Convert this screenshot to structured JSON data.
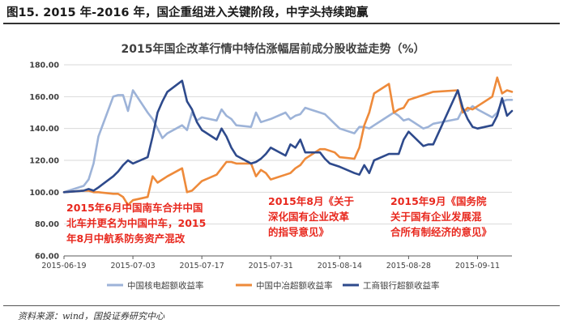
{
  "figure": {
    "title": "图15. 2015 年-2016 年，国企重组进入关键阶段，中字头持续跑赢",
    "source": "资料来源：wind，国投证券研究中心"
  },
  "colors": {
    "nuclear": "#9db3d8",
    "metallurgy": "#ee8a3a",
    "icbc": "#2e4a8c",
    "annotation": "#e8281e",
    "grid": "#d9d9d9",
    "axis": "#595959"
  },
  "chart_data": {
    "type": "line",
    "title": "2015年国企改革行情中特估涨幅居前成分股收益走势（%）",
    "xlabel": "",
    "ylabel": "",
    "ylim": [
      60,
      180
    ],
    "y_ticks": [
      "60.00",
      "80.00",
      "100.00",
      "120.00",
      "140.00",
      "160.00",
      "180.00"
    ],
    "x_range": [
      "2015-06-19",
      "2015-09-18"
    ],
    "x_ticks": [
      "2015-06-19",
      "2015-07-03",
      "2015-07-17",
      "2015-07-31",
      "2015-08-14",
      "2015-08-28",
      "2015-09-11"
    ],
    "grid": "horizontal",
    "legend_position": "bottom",
    "series": [
      {
        "name": "中国核电超额收益率",
        "color_key": "nuclear",
        "points": [
          [
            "2015-06-19",
            100
          ],
          [
            "2015-06-23",
            104
          ],
          [
            "2015-06-24",
            108
          ],
          [
            "2015-06-25",
            118
          ],
          [
            "2015-06-26",
            135
          ],
          [
            "2015-06-29",
            160
          ],
          [
            "2015-06-30",
            161
          ],
          [
            "2015-07-01",
            161
          ],
          [
            "2015-07-02",
            151
          ],
          [
            "2015-07-03",
            164
          ],
          [
            "2015-07-06",
            150
          ],
          [
            "2015-07-07",
            146
          ],
          [
            "2015-07-08",
            140
          ],
          [
            "2015-07-09",
            134
          ],
          [
            "2015-07-10",
            137
          ],
          [
            "2015-07-13",
            142
          ],
          [
            "2015-07-14",
            139
          ],
          [
            "2015-07-15",
            150
          ],
          [
            "2015-07-16",
            145
          ],
          [
            "2015-07-17",
            147
          ],
          [
            "2015-07-20",
            145
          ],
          [
            "2015-07-21",
            152
          ],
          [
            "2015-07-22",
            148
          ],
          [
            "2015-07-23",
            146
          ],
          [
            "2015-07-24",
            142
          ],
          [
            "2015-07-27",
            141
          ],
          [
            "2015-07-28",
            150
          ],
          [
            "2015-07-29",
            144
          ],
          [
            "2015-07-30",
            145
          ],
          [
            "2015-07-31",
            146
          ],
          [
            "2015-08-03",
            150
          ],
          [
            "2015-08-04",
            146
          ],
          [
            "2015-08-05",
            148
          ],
          [
            "2015-08-06",
            149
          ],
          [
            "2015-08-07",
            153
          ],
          [
            "2015-08-10",
            150
          ],
          [
            "2015-08-11",
            149
          ],
          [
            "2015-08-12",
            146
          ],
          [
            "2015-08-13",
            143
          ],
          [
            "2015-08-14",
            140
          ],
          [
            "2015-08-17",
            137
          ],
          [
            "2015-08-18",
            141
          ],
          [
            "2015-08-19",
            141
          ],
          [
            "2015-08-20",
            140
          ],
          [
            "2015-08-21",
            142
          ],
          [
            "2015-08-24",
            148
          ],
          [
            "2015-08-25",
            150
          ],
          [
            "2015-08-26",
            148
          ],
          [
            "2015-08-27",
            145
          ],
          [
            "2015-08-28",
            146
          ],
          [
            "2015-08-31",
            140
          ],
          [
            "2015-09-01",
            141
          ],
          [
            "2015-09-02",
            143
          ],
          [
            "2015-09-07",
            146
          ],
          [
            "2015-09-08",
            152
          ],
          [
            "2015-09-09",
            151
          ],
          [
            "2015-09-10",
            154
          ],
          [
            "2015-09-11",
            152
          ],
          [
            "2015-09-14",
            147
          ],
          [
            "2015-09-15",
            150
          ],
          [
            "2015-09-16",
            157
          ],
          [
            "2015-09-17",
            158
          ],
          [
            "2015-09-18",
            158
          ]
        ]
      },
      {
        "name": "中国中冶超额收益率",
        "color_key": "metallurgy",
        "points": [
          [
            "2015-06-19",
            100
          ],
          [
            "2015-06-23",
            101
          ],
          [
            "2015-06-24",
            101
          ],
          [
            "2015-06-25",
            100
          ],
          [
            "2015-06-26",
            100
          ],
          [
            "2015-06-29",
            99
          ],
          [
            "2015-06-30",
            99
          ],
          [
            "2015-07-01",
            97
          ],
          [
            "2015-07-02",
            92
          ],
          [
            "2015-07-03",
            95
          ],
          [
            "2015-07-06",
            97
          ],
          [
            "2015-07-07",
            110
          ],
          [
            "2015-07-08",
            106
          ],
          [
            "2015-07-09",
            108
          ],
          [
            "2015-07-10",
            110
          ],
          [
            "2015-07-13",
            115
          ],
          [
            "2015-07-14",
            100
          ],
          [
            "2015-07-15",
            101
          ],
          [
            "2015-07-16",
            104
          ],
          [
            "2015-07-17",
            107
          ],
          [
            "2015-07-20",
            111
          ],
          [
            "2015-07-21",
            115
          ],
          [
            "2015-07-22",
            119
          ],
          [
            "2015-07-23",
            119
          ],
          [
            "2015-07-24",
            118
          ],
          [
            "2015-07-27",
            118
          ],
          [
            "2015-07-28",
            110
          ],
          [
            "2015-07-29",
            114
          ],
          [
            "2015-07-30",
            112
          ],
          [
            "2015-07-31",
            108
          ],
          [
            "2015-08-03",
            111
          ],
          [
            "2015-08-04",
            112
          ],
          [
            "2015-08-05",
            115
          ],
          [
            "2015-08-06",
            117
          ],
          [
            "2015-08-07",
            121
          ],
          [
            "2015-08-10",
            127
          ],
          [
            "2015-08-11",
            127
          ],
          [
            "2015-08-12",
            126
          ],
          [
            "2015-08-13",
            125
          ],
          [
            "2015-08-14",
            122
          ],
          [
            "2015-08-17",
            121
          ],
          [
            "2015-08-18",
            128
          ],
          [
            "2015-08-19",
            142
          ],
          [
            "2015-08-20",
            150
          ],
          [
            "2015-08-21",
            162
          ],
          [
            "2015-08-24",
            168
          ],
          [
            "2015-08-25",
            150
          ],
          [
            "2015-08-26",
            152
          ],
          [
            "2015-08-27",
            153
          ],
          [
            "2015-08-28",
            158
          ],
          [
            "2015-08-31",
            161
          ],
          [
            "2015-09-01",
            162
          ],
          [
            "2015-09-02",
            163
          ],
          [
            "2015-09-07",
            164
          ],
          [
            "2015-09-08",
            150
          ],
          [
            "2015-09-09",
            153
          ],
          [
            "2015-09-10",
            152
          ],
          [
            "2015-09-11",
            154
          ],
          [
            "2015-09-14",
            160
          ],
          [
            "2015-09-15",
            172
          ],
          [
            "2015-09-16",
            162
          ],
          [
            "2015-09-17",
            164
          ],
          [
            "2015-09-18",
            163
          ]
        ]
      },
      {
        "name": "工商银行超额收益率",
        "color_key": "icbc",
        "points": [
          [
            "2015-06-19",
            100
          ],
          [
            "2015-06-23",
            101
          ],
          [
            "2015-06-24",
            102
          ],
          [
            "2015-06-25",
            101
          ],
          [
            "2015-06-26",
            103
          ],
          [
            "2015-06-29",
            110
          ],
          [
            "2015-06-30",
            113
          ],
          [
            "2015-07-01",
            117
          ],
          [
            "2015-07-02",
            120
          ],
          [
            "2015-07-03",
            118
          ],
          [
            "2015-07-06",
            122
          ],
          [
            "2015-07-07",
            135
          ],
          [
            "2015-07-08",
            150
          ],
          [
            "2015-07-09",
            157
          ],
          [
            "2015-07-10",
            163
          ],
          [
            "2015-07-13",
            170
          ],
          [
            "2015-07-14",
            157
          ],
          [
            "2015-07-15",
            152
          ],
          [
            "2015-07-16",
            144
          ],
          [
            "2015-07-17",
            139
          ],
          [
            "2015-07-20",
            133
          ],
          [
            "2015-07-21",
            140
          ],
          [
            "2015-07-22",
            135
          ],
          [
            "2015-07-23",
            128
          ],
          [
            "2015-07-24",
            123
          ],
          [
            "2015-07-27",
            118
          ],
          [
            "2015-07-28",
            119
          ],
          [
            "2015-07-29",
            121
          ],
          [
            "2015-07-30",
            124
          ],
          [
            "2015-07-31",
            128
          ],
          [
            "2015-08-03",
            123
          ],
          [
            "2015-08-04",
            130
          ],
          [
            "2015-08-05",
            128
          ],
          [
            "2015-08-06",
            133
          ],
          [
            "2015-08-07",
            125
          ],
          [
            "2015-08-10",
            125
          ],
          [
            "2015-08-11",
            121
          ],
          [
            "2015-08-12",
            118
          ],
          [
            "2015-08-13",
            117
          ],
          [
            "2015-08-14",
            116
          ],
          [
            "2015-08-17",
            112
          ],
          [
            "2015-08-18",
            111
          ],
          [
            "2015-08-19",
            117
          ],
          [
            "2015-08-20",
            112
          ],
          [
            "2015-08-21",
            120
          ],
          [
            "2015-08-24",
            124
          ],
          [
            "2015-08-25",
            124
          ],
          [
            "2015-08-26",
            124
          ],
          [
            "2015-08-27",
            133
          ],
          [
            "2015-08-28",
            138
          ],
          [
            "2015-08-31",
            129
          ],
          [
            "2015-09-01",
            130
          ],
          [
            "2015-09-02",
            130
          ],
          [
            "2015-09-07",
            164
          ],
          [
            "2015-09-08",
            153
          ],
          [
            "2015-09-09",
            146
          ],
          [
            "2015-09-10",
            141
          ],
          [
            "2015-09-11",
            140
          ],
          [
            "2015-09-14",
            142
          ],
          [
            "2015-09-15",
            148
          ],
          [
            "2015-09-16",
            159
          ],
          [
            "2015-09-17",
            148
          ],
          [
            "2015-09-18",
            151
          ]
        ]
      }
    ],
    "annotations": [
      {
        "lines": [
          "2015年6月中国南车合并中国",
          "北车并更名为中国中车，2015",
          "年8月中航系防务资产混改"
        ]
      },
      {
        "lines": [
          "2015年8月《关于",
          "深化国有企业改革",
          "的指导意见》"
        ]
      },
      {
        "lines": [
          "2015年9月《国务院",
          "关于国有企业发展混",
          "合所有制经济的意见》"
        ]
      }
    ]
  }
}
